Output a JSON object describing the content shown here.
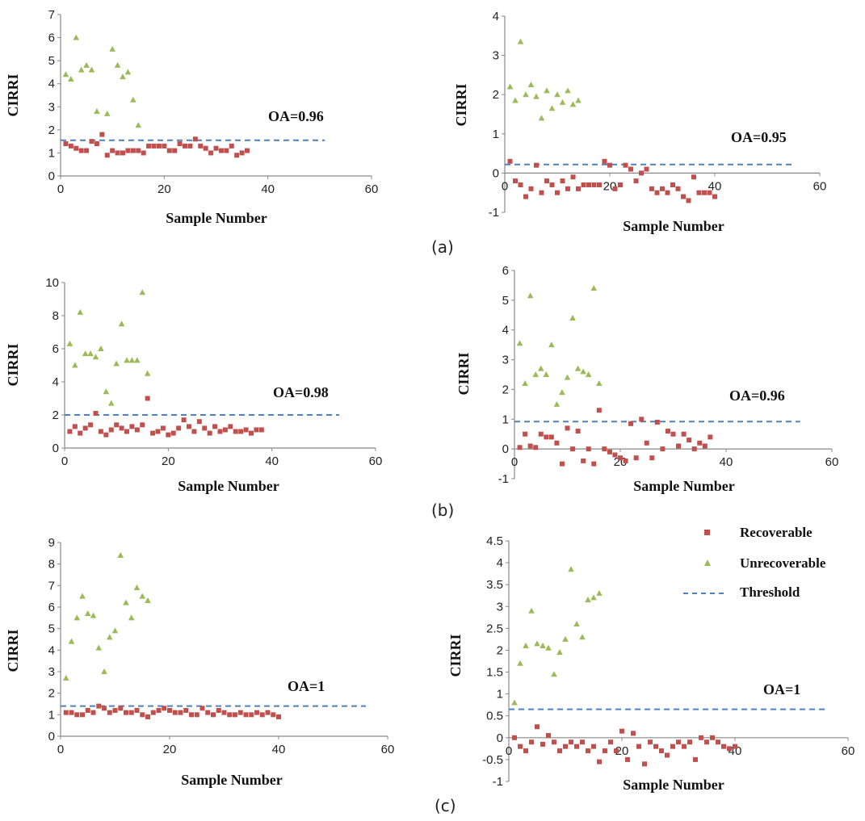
{
  "panel_labels": {
    "a": "(a)",
    "b": "(b)",
    "c": "(c)"
  },
  "legend": {
    "recoverable": "Recoverable",
    "unrecoverable": "Unrecoverable",
    "threshold": "Threshold"
  },
  "colors": {
    "recoverable": "#c0504d",
    "unrecoverable": "#9bbb59",
    "threshold": "#4f81bd",
    "axis": "#888888",
    "text": "#111111"
  },
  "chart_data": [
    {
      "id": "a-left",
      "type": "scatter",
      "xlabel": "Sample Number",
      "ylabel": "CIRRI",
      "xlim": [
        0,
        60
      ],
      "ylim": [
        0,
        7
      ],
      "xticks": [
        "0",
        "20",
        "40",
        "60"
      ],
      "yticks": [
        "0",
        "1",
        "2",
        "3",
        "4",
        "5",
        "6",
        "7"
      ],
      "annotation": "OA=0.96",
      "threshold": {
        "value": 1.55,
        "x_end": 51
      },
      "series": [
        {
          "name": "Recoverable",
          "x": [
            1,
            2,
            3,
            4,
            5,
            6,
            7,
            8,
            9,
            10,
            11,
            12,
            13,
            14,
            15,
            16,
            17,
            18,
            19,
            20,
            21,
            22,
            23,
            24,
            25,
            26,
            27,
            28,
            29,
            30,
            31,
            32,
            33,
            34,
            35,
            36
          ],
          "y": [
            1.4,
            1.3,
            1.2,
            1.1,
            1.1,
            1.5,
            1.4,
            1.8,
            0.9,
            1.1,
            1.0,
            1.0,
            1.1,
            1.1,
            1.1,
            1.0,
            1.3,
            1.3,
            1.3,
            1.3,
            1.1,
            1.1,
            1.4,
            1.3,
            1.3,
            1.6,
            1.3,
            1.2,
            1.0,
            1.2,
            1.1,
            1.1,
            1.3,
            0.9,
            1.0,
            1.1
          ]
        },
        {
          "name": "Unrecoverable",
          "x": [
            1,
            2,
            3,
            4,
            5,
            6,
            7,
            9,
            10,
            11,
            12,
            13,
            14,
            15
          ],
          "y": [
            4.4,
            4.2,
            6.0,
            4.6,
            4.8,
            4.6,
            2.8,
            2.7,
            5.5,
            4.8,
            4.3,
            4.5,
            3.3,
            2.2
          ]
        }
      ]
    },
    {
      "id": "a-right",
      "type": "scatter",
      "xlabel": "Sample Number",
      "ylabel": "CIRRI",
      "xlim": [
        0,
        60
      ],
      "ylim": [
        -1,
        4
      ],
      "xticks": [
        "0",
        "20",
        "40",
        "60"
      ],
      "yticks": [
        "-1",
        "0",
        "1",
        "2",
        "3",
        "4"
      ],
      "annotation": "OA=0.95",
      "threshold": {
        "value": 0.22,
        "x_end": 55
      },
      "series": [
        {
          "name": "Recoverable",
          "x": [
            1,
            2,
            3,
            4,
            5,
            6,
            7,
            8,
            9,
            10,
            11,
            12,
            13,
            14,
            15,
            16,
            17,
            18,
            19,
            20,
            21,
            22,
            23,
            24,
            25,
            26,
            27,
            28,
            29,
            30,
            31,
            32,
            33,
            34,
            35,
            36,
            37,
            38,
            39,
            40
          ],
          "y": [
            0.3,
            -0.2,
            -0.3,
            -0.6,
            -0.4,
            0.2,
            -0.5,
            -0.2,
            -0.3,
            -0.5,
            -0.2,
            -0.4,
            -0.1,
            -0.4,
            -0.3,
            -0.3,
            -0.3,
            -0.3,
            0.3,
            0.2,
            -0.4,
            -0.3,
            0.2,
            0.1,
            -0.2,
            0.0,
            0.1,
            -0.4,
            -0.5,
            -0.4,
            -0.5,
            -0.3,
            -0.4,
            -0.6,
            -0.7,
            -0.1,
            -0.5,
            -0.5,
            -0.5,
            -0.6
          ]
        },
        {
          "name": "Unrecoverable",
          "x": [
            1,
            2,
            3,
            4,
            5,
            6,
            7,
            8,
            9,
            10,
            11,
            12,
            13,
            14
          ],
          "y": [
            2.2,
            1.85,
            3.35,
            2.0,
            2.25,
            1.95,
            1.4,
            2.1,
            1.65,
            2.0,
            1.8,
            2.1,
            1.75,
            1.85
          ]
        }
      ]
    },
    {
      "id": "b-left",
      "type": "scatter",
      "xlabel": "Sample Number",
      "ylabel": "CIRRI",
      "xlim": [
        0,
        60
      ],
      "ylim": [
        0,
        10
      ],
      "xticks": [
        "0",
        "20",
        "40",
        "60"
      ],
      "yticks": [
        "0",
        "2",
        "4",
        "6",
        "8",
        "10"
      ],
      "annotation": "OA=0.98",
      "threshold": {
        "value": 2.0,
        "x_end": 53
      },
      "series": [
        {
          "name": "Recoverable",
          "x": [
            1,
            2,
            3,
            4,
            5,
            6,
            7,
            8,
            9,
            10,
            11,
            12,
            13,
            14,
            15,
            16,
            17,
            18,
            19,
            20,
            21,
            22,
            23,
            24,
            25,
            26,
            27,
            28,
            29,
            30,
            31,
            32,
            33,
            34,
            35,
            36,
            37,
            38
          ],
          "y": [
            1.0,
            1.3,
            0.9,
            1.2,
            1.4,
            2.1,
            1.0,
            0.8,
            1.1,
            1.4,
            1.2,
            1.0,
            1.3,
            1.1,
            1.4,
            3.0,
            0.9,
            1.0,
            1.2,
            0.8,
            0.9,
            1.2,
            1.7,
            1.3,
            1.0,
            1.6,
            1.2,
            0.9,
            1.3,
            1.0,
            1.1,
            1.3,
            1.0,
            1.0,
            1.1,
            0.9,
            1.1,
            1.1
          ]
        },
        {
          "name": "Unrecoverable",
          "x": [
            1,
            2,
            3,
            4,
            5,
            6,
            7,
            8,
            9,
            10,
            11,
            12,
            13,
            14,
            15,
            16
          ],
          "y": [
            6.3,
            5.0,
            8.2,
            5.7,
            5.7,
            5.5,
            6.0,
            3.4,
            2.7,
            5.1,
            7.5,
            5.3,
            5.3,
            5.3,
            9.4,
            4.5
          ]
        }
      ]
    },
    {
      "id": "b-right",
      "type": "scatter",
      "xlabel": "Sample Number",
      "ylabel": "CIRRI",
      "xlim": [
        0,
        60
      ],
      "ylim": [
        -1,
        6
      ],
      "xticks": [
        "0",
        "20",
        "40",
        "60"
      ],
      "yticks": [
        "-1",
        "0",
        "1",
        "2",
        "3",
        "4",
        "5",
        "6"
      ],
      "annotation": "OA=0.96",
      "threshold": {
        "value": 0.92,
        "x_end": 54
      },
      "series": [
        {
          "name": "Recoverable",
          "x": [
            1,
            2,
            3,
            4,
            5,
            6,
            7,
            8,
            9,
            10,
            11,
            12,
            13,
            14,
            15,
            16,
            17,
            18,
            19,
            20,
            21,
            22,
            23,
            24,
            25,
            26,
            27,
            28,
            29,
            30,
            31,
            32,
            33,
            34,
            35,
            36,
            37
          ],
          "y": [
            0.05,
            0.5,
            0.1,
            0.05,
            0.5,
            0.4,
            0.4,
            0.2,
            -0.5,
            0.7,
            0.0,
            0.6,
            -0.4,
            0.0,
            -0.5,
            1.3,
            0.0,
            -0.1,
            -0.2,
            -0.3,
            -0.4,
            0.85,
            -0.3,
            1.0,
            0.2,
            -0.3,
            0.9,
            0.0,
            0.6,
            0.5,
            0.1,
            0.5,
            0.3,
            0.0,
            0.2,
            0.1,
            0.4
          ]
        },
        {
          "name": "Unrecoverable",
          "x": [
            1,
            2,
            3,
            4,
            5,
            6,
            7,
            8,
            9,
            10,
            11,
            12,
            13,
            14,
            15,
            16
          ],
          "y": [
            3.55,
            2.2,
            5.15,
            2.5,
            2.7,
            2.5,
            3.5,
            1.5,
            1.9,
            2.4,
            4.4,
            2.7,
            2.6,
            2.5,
            5.4,
            2.2
          ]
        }
      ]
    },
    {
      "id": "c-left",
      "type": "scatter",
      "xlabel": "Sample Number",
      "ylabel": "CIRRI",
      "xlim": [
        0,
        60
      ],
      "ylim": [
        0,
        9
      ],
      "xticks": [
        "0",
        "20",
        "40",
        "60"
      ],
      "yticks": [
        "0",
        "1",
        "2",
        "3",
        "4",
        "5",
        "6",
        "7",
        "8",
        "9"
      ],
      "annotation": "OA=1",
      "threshold": {
        "value": 1.4,
        "x_end": 56
      },
      "series": [
        {
          "name": "Recoverable",
          "x": [
            1,
            2,
            3,
            4,
            5,
            6,
            7,
            8,
            9,
            10,
            11,
            12,
            13,
            14,
            15,
            16,
            17,
            18,
            19,
            20,
            21,
            22,
            23,
            24,
            25,
            26,
            27,
            28,
            29,
            30,
            31,
            32,
            33,
            34,
            35,
            36,
            37,
            38,
            39,
            40
          ],
          "y": [
            1.1,
            1.1,
            1.0,
            1.0,
            1.2,
            1.1,
            1.4,
            1.3,
            1.1,
            1.2,
            1.3,
            1.1,
            1.1,
            1.2,
            1.0,
            0.9,
            1.1,
            1.2,
            1.3,
            1.2,
            1.1,
            1.1,
            1.2,
            1.0,
            1.0,
            1.3,
            1.1,
            1.0,
            1.2,
            1.1,
            1.0,
            1.0,
            1.1,
            1.0,
            1.0,
            1.1,
            1.0,
            1.1,
            1.0,
            0.9
          ]
        },
        {
          "name": "Unrecoverable",
          "x": [
            1,
            2,
            3,
            4,
            5,
            6,
            7,
            8,
            9,
            10,
            11,
            12,
            13,
            14,
            15,
            16
          ],
          "y": [
            2.7,
            4.4,
            5.5,
            6.5,
            5.7,
            5.6,
            4.1,
            3.0,
            4.6,
            4.9,
            8.4,
            6.2,
            5.5,
            6.9,
            6.5,
            6.3
          ]
        }
      ]
    },
    {
      "id": "c-right",
      "type": "scatter",
      "xlabel": "Sample Number",
      "ylabel": "CIRRI",
      "xlim": [
        0,
        60
      ],
      "ylim": [
        -1,
        4.5
      ],
      "xticks": [
        "0",
        "20",
        "40",
        "60"
      ],
      "yticks": [
        "-1",
        "-0.5",
        "0",
        "0.5",
        "1",
        "1.5",
        "2",
        "2.5",
        "3",
        "3.5",
        "4",
        "4.5"
      ],
      "annotation": "OA=1",
      "threshold": {
        "value": 0.65,
        "x_end": 56
      },
      "series": [
        {
          "name": "Recoverable",
          "x": [
            1,
            2,
            3,
            4,
            5,
            6,
            7,
            8,
            9,
            10,
            11,
            12,
            13,
            14,
            15,
            16,
            17,
            18,
            19,
            20,
            21,
            22,
            23,
            24,
            25,
            26,
            27,
            28,
            29,
            30,
            31,
            32,
            33,
            34,
            35,
            36,
            37,
            38,
            39,
            40
          ],
          "y": [
            0.0,
            -0.2,
            -0.3,
            -0.1,
            0.25,
            -0.15,
            0.05,
            -0.1,
            -0.3,
            -0.2,
            -0.1,
            -0.2,
            -0.1,
            -0.3,
            -0.2,
            -0.55,
            -0.3,
            -0.1,
            -0.3,
            0.15,
            -0.5,
            0.1,
            -0.2,
            -0.6,
            -0.1,
            -0.2,
            -0.3,
            -0.4,
            -0.2,
            -0.1,
            -0.2,
            -0.1,
            -0.5,
            0.0,
            -0.1,
            0.0,
            -0.1,
            -0.2,
            -0.25,
            -0.2
          ]
        },
        {
          "name": "Unrecoverable",
          "x": [
            1,
            2,
            3,
            4,
            5,
            6,
            7,
            8,
            9,
            10,
            11,
            12,
            13,
            14,
            15,
            16
          ],
          "y": [
            0.8,
            1.7,
            2.1,
            2.9,
            2.15,
            2.1,
            2.05,
            1.45,
            1.95,
            2.25,
            3.85,
            2.6,
            2.3,
            3.15,
            3.2,
            3.3
          ]
        }
      ]
    }
  ]
}
